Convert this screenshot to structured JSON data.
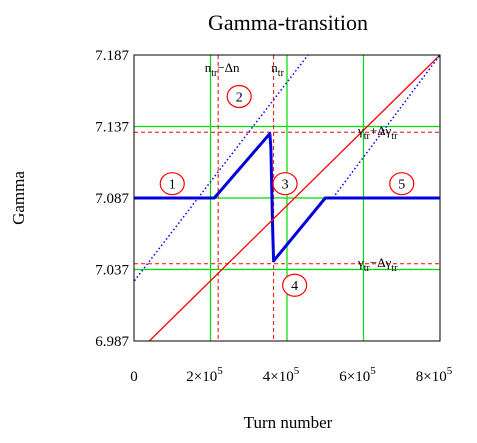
{
  "chart_data": {
    "type": "line",
    "title": "Gamma-transition",
    "xlabel": "Turn number",
    "ylabel": "Gamma",
    "xlim": [
      0,
      800000
    ],
    "ylim": [
      6.987,
      7.187
    ],
    "x_ticks": [
      {
        "value": 0,
        "label": "0"
      },
      {
        "value": 200000,
        "base": "2×10",
        "exp": "5"
      },
      {
        "value": 400000,
        "base": "4×10",
        "exp": "5"
      },
      {
        "value": 600000,
        "base": "6×10",
        "exp": "5"
      },
      {
        "value": 800000,
        "base": "8×10",
        "exp": "5"
      }
    ],
    "y_ticks": [
      {
        "value": 6.987,
        "label": "6.987"
      },
      {
        "value": 7.037,
        "label": "7.037"
      },
      {
        "value": 7.087,
        "label": "7.087"
      },
      {
        "value": 7.137,
        "label": "7.137"
      },
      {
        "value": 7.187,
        "label": "7.187"
      }
    ],
    "grid": true,
    "grid_lines": {
      "x": [
        200000,
        400000,
        600000
      ],
      "y": [
        7.037,
        7.087,
        7.137
      ]
    },
    "series": [
      {
        "style": "solid",
        "color": "#0000dd",
        "x": [
          0,
          210000,
          355000,
          358000,
          362000,
          365000,
          500000,
          800000
        ],
        "y": [
          7.087,
          7.087,
          7.132,
          7.122,
          7.069,
          7.043,
          7.087,
          7.087
        ]
      },
      {
        "style": "solid",
        "color": "#ff0000",
        "x": [
          40000,
          800000
        ],
        "y": [
          6.987,
          7.187
        ]
      },
      {
        "style": "dotted",
        "color": "#0000ff",
        "x": [
          -120000,
          455000
        ],
        "y": [
          6.987,
          7.187
        ]
      },
      {
        "style": "dotted",
        "color": "#0000ff",
        "x": [
          520000,
          800000
        ],
        "y": [
          7.087,
          7.187
        ]
      }
    ],
    "reference_lines": {
      "color": "#ff0000",
      "vertical": [
        {
          "x": 220000,
          "base": "n",
          "sub": "tr",
          "op": "−Δn"
        },
        {
          "x": 365000,
          "base": "n",
          "sub": "tr",
          "op": ""
        }
      ],
      "horizontal": [
        {
          "y": 7.133,
          "base": "γ",
          "sub": "tr",
          "op": "+Δγ",
          "sub2": "tr"
        },
        {
          "y": 7.041,
          "base": "γ",
          "sub": "tr",
          "op": "−Δγ",
          "sub2": "tr"
        }
      ]
    },
    "regions": [
      {
        "label": "1",
        "x": 100000,
        "y": 7.097
      },
      {
        "label": "2",
        "x": 275000,
        "y": 7.158
      },
      {
        "label": "3",
        "x": 395000,
        "y": 7.097
      },
      {
        "label": "4",
        "x": 420000,
        "y": 7.026
      },
      {
        "label": "5",
        "x": 700000,
        "y": 7.097
      }
    ]
  }
}
